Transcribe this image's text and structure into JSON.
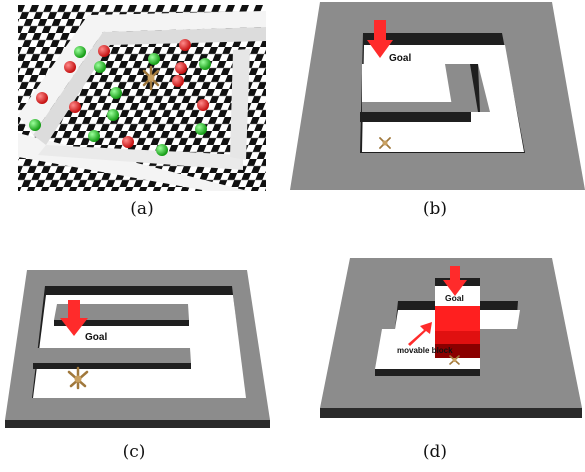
{
  "figure": {
    "panels": [
      {
        "id": "a",
        "caption": "(a)"
      },
      {
        "id": "b",
        "caption": "(b)",
        "goal_label": "Goal"
      },
      {
        "id": "c",
        "caption": "(c)",
        "goal_label": "Goal"
      },
      {
        "id": "d",
        "caption": "(d)",
        "goal_label": "Goal",
        "block_label": "movable block"
      }
    ],
    "colors": {
      "wall_top": "#8c8c8c",
      "wall_side": "#2f2f2f",
      "floor": "#ffffff",
      "arrow": "#ff2b2b",
      "block": "#ff1f1f",
      "ball_red": "#e61e1e",
      "ball_green": "#22cc22"
    }
  }
}
